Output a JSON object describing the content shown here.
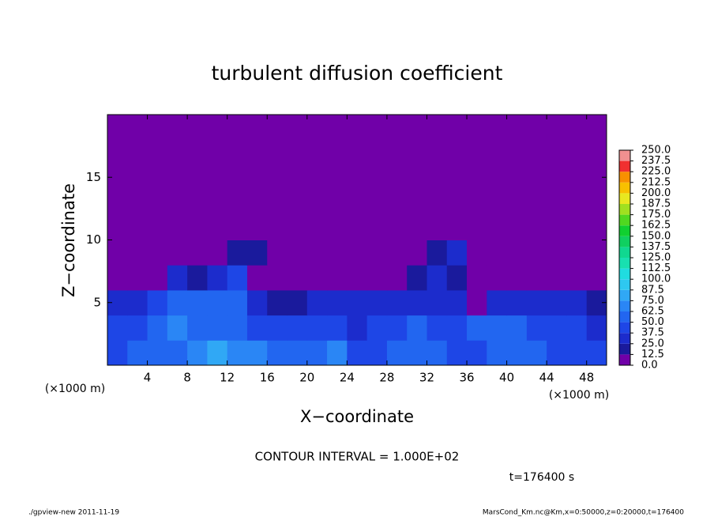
{
  "chart_data": {
    "type": "heatmap",
    "title": "turbulent diffusion coefficient",
    "xlabel": "X−coordinate",
    "ylabel": "Z−coordinate",
    "x_unit": "(×1000 m)",
    "y_unit": "(×1000 m)",
    "xlim": [
      0,
      50
    ],
    "ylim": [
      0,
      20
    ],
    "xticks": [
      4,
      8,
      12,
      16,
      20,
      24,
      28,
      32,
      36,
      40,
      44,
      48
    ],
    "yticks": [
      5,
      10,
      15
    ],
    "x": [
      1,
      3,
      5,
      7,
      9,
      11,
      13,
      15,
      17,
      19,
      21,
      23,
      25,
      27,
      29,
      31,
      33,
      35,
      37,
      39,
      41,
      43,
      45,
      47,
      49
    ],
    "z": [
      1,
      3,
      5,
      7,
      9,
      11
    ],
    "values": [
      [
        45,
        50,
        55,
        60,
        70,
        75,
        70,
        65,
        60,
        55,
        50,
        65,
        45,
        40,
        50,
        55,
        50,
        45,
        45,
        50,
        55,
        50,
        45,
        45,
        45
      ],
      [
        40,
        45,
        55,
        65,
        60,
        55,
        50,
        45,
        40,
        45,
        40,
        40,
        35,
        40,
        45,
        50,
        45,
        40,
        50,
        55,
        50,
        45,
        40,
        40,
        35
      ],
      [
        30,
        25,
        40,
        55,
        60,
        50,
        60,
        30,
        20,
        20,
        25,
        30,
        30,
        25,
        30,
        35,
        30,
        25,
        10,
        35,
        35,
        30,
        30,
        25,
        20
      ],
      [
        10,
        0,
        0,
        30,
        20,
        25,
        40,
        10,
        0,
        0,
        0,
        0,
        0,
        0,
        0,
        20,
        25,
        20,
        0,
        0,
        0,
        0,
        0,
        0,
        0
      ],
      [
        0,
        0,
        0,
        0,
        0,
        10,
        20,
        15,
        0,
        0,
        0,
        0,
        0,
        0,
        0,
        0,
        20,
        25,
        0,
        0,
        0,
        10,
        0,
        0,
        0
      ],
      [
        0,
        0,
        0,
        0,
        0,
        0,
        10,
        10,
        5,
        0,
        0,
        0,
        0,
        0,
        0,
        0,
        0,
        0,
        0,
        0,
        0,
        0,
        0,
        0,
        0
      ]
    ],
    "colorbar": {
      "ticks": [
        {
          "value": 0,
          "label": "0.0"
        },
        12.5,
        {
          "value": 25,
          "label": "25.0"
        },
        37.5,
        {
          "value": 50,
          "label": "50.0"
        },
        62.5,
        {
          "value": 75,
          "label": "75.0"
        },
        87.5,
        {
          "value": 100,
          "label": "100.0"
        },
        112.5,
        {
          "value": 125,
          "label": "125.0"
        },
        137.5,
        {
          "value": 150,
          "label": "150.0"
        },
        162.5,
        {
          "value": 175,
          "label": "175.0"
        },
        187.5,
        {
          "value": 200,
          "label": "200.0"
        },
        212.5,
        {
          "value": 225,
          "label": "225.0"
        },
        237.5,
        {
          "value": 250,
          "label": "250.0"
        }
      ],
      "colors": [
        "#7000a8",
        "#1a1a9c",
        "#1c2ccc",
        "#1e46e6",
        "#2266f0",
        "#2a86f5",
        "#30a8f5",
        "#2ec8f0",
        "#20dce0",
        "#18e0b0",
        "#10d890",
        "#10d060",
        "#10d030",
        "#50d820",
        "#a0e020",
        "#e8e820",
        "#f8c000",
        "#f89000",
        "#f03030",
        "#f09090"
      ]
    },
    "note": "CONTOUR INTERVAL = 1.000E+02",
    "time": "t=176400 s",
    "footer_left": "./gpview-new  2011-11-19",
    "footer_right": "MarsCond_Km.nc@Km,x=0:50000,z=0:20000,t=176400"
  }
}
